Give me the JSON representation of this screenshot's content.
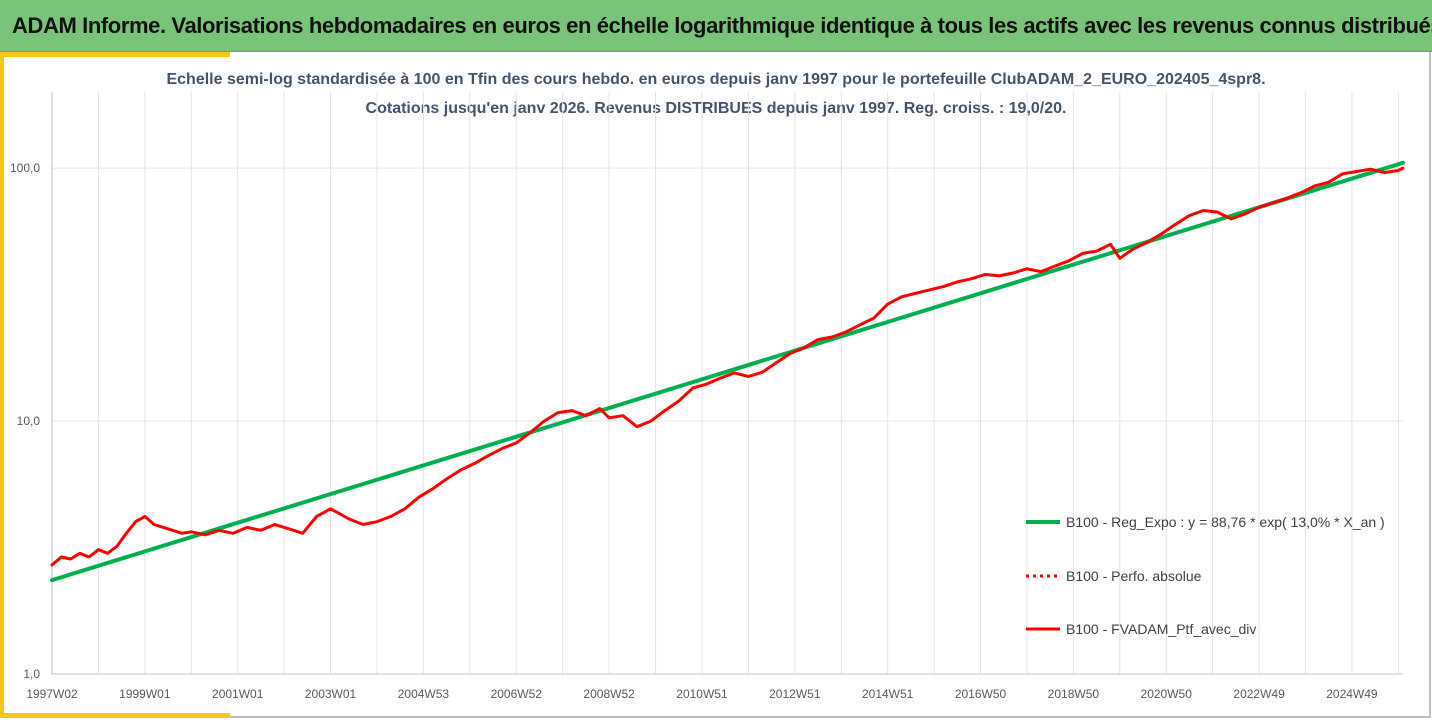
{
  "banner": {
    "title": "ADAM Informe. Valorisations hebdomadaires en euros en échelle logarithmique identique à tous les actifs avec les revenus connus distribués"
  },
  "chart_data": {
    "type": "line",
    "title": "Echelle semi-log standardisée  à 100 en Tfin des cours hebdo.  en euros depuis janv 1997 pour le portefeuille ClubADAM_2_EURO_202405_4spr8.",
    "subtitle": "Cotations  jusqu'en janv 2026. Revenus DISTRIBUES depuis janv 1997. Reg. croiss. : 19,0/20.",
    "y_scale": "log",
    "ylim": [
      1,
      200
    ],
    "y_ticks": [
      1,
      10,
      100
    ],
    "y_tick_labels": [
      "1,0",
      "10,0",
      "100,0"
    ],
    "x_range": [
      1997.0,
      2026.1
    ],
    "x_ticks": [
      1997.0,
      1999.0,
      2001.0,
      2003.0,
      2005.0,
      2007.0,
      2009.0,
      2011.0,
      2013.0,
      2015.0,
      2017.0,
      2019.0,
      2021.0,
      2023.0,
      2025.0
    ],
    "x_tick_labels": [
      "1997W02",
      "1999W01",
      "2001W01",
      "2003W01",
      "2004W53",
      "2006W52",
      "2008W52",
      "2010W51",
      "2012W51",
      "2014W51",
      "2016W50",
      "2018W50",
      "2020W50",
      "2022W49",
      "2024W49"
    ],
    "grid": "vertical",
    "legend_position": "right",
    "series": [
      {
        "name": "B100 - Reg_Expo : y = 88,76 * exp( 13,0% *  X_an )",
        "color": "#00b050",
        "style": "solid",
        "x": [
          1997.0,
          2026.1
        ],
        "values": [
          2.35,
          105.0
        ]
      },
      {
        "name": "B100 - Perfo. absolue",
        "color": "#ff0000",
        "style": "dotted",
        "x": [],
        "values": []
      },
      {
        "name": "B100 - FVADAM_Ptf_avec_div",
        "color": "#ff0000",
        "style": "solid",
        "x": [
          1997.0,
          1997.2,
          1997.4,
          1997.6,
          1997.8,
          1998.0,
          1998.2,
          1998.4,
          1998.6,
          1998.8,
          1999.0,
          1999.2,
          1999.4,
          1999.6,
          1999.8,
          2000.0,
          2000.3,
          2000.6,
          2000.9,
          2001.2,
          2001.5,
          2001.8,
          2002.1,
          2002.4,
          2002.7,
          2003.0,
          2003.2,
          2003.4,
          2003.7,
          2004.0,
          2004.3,
          2004.6,
          2004.9,
          2005.2,
          2005.5,
          2005.8,
          2006.1,
          2006.4,
          2006.7,
          2007.0,
          2007.3,
          2007.6,
          2007.9,
          2008.2,
          2008.5,
          2008.8,
          2009.0,
          2009.3,
          2009.6,
          2009.9,
          2010.2,
          2010.5,
          2010.8,
          2011.1,
          2011.4,
          2011.7,
          2012.0,
          2012.3,
          2012.6,
          2012.9,
          2013.2,
          2013.5,
          2013.8,
          2014.1,
          2014.4,
          2014.7,
          2015.0,
          2015.3,
          2015.6,
          2015.9,
          2016.2,
          2016.5,
          2016.8,
          2017.1,
          2017.4,
          2017.7,
          2018.0,
          2018.3,
          2018.6,
          2018.9,
          2019.2,
          2019.5,
          2019.8,
          2020.0,
          2020.15,
          2020.3,
          2020.6,
          2020.9,
          2021.2,
          2021.5,
          2021.8,
          2022.1,
          2022.4,
          2022.7,
          2023.0,
          2023.3,
          2023.6,
          2023.9,
          2024.2,
          2024.5,
          2024.8,
          2025.1,
          2025.4,
          2025.7,
          2026.0,
          2026.1
        ],
        "values": [
          2.7,
          2.9,
          2.85,
          3.0,
          2.9,
          3.1,
          3.0,
          3.2,
          3.6,
          4.0,
          4.2,
          3.9,
          3.8,
          3.7,
          3.6,
          3.65,
          3.55,
          3.7,
          3.6,
          3.8,
          3.7,
          3.9,
          3.75,
          3.6,
          4.2,
          4.5,
          4.3,
          4.1,
          3.9,
          4.0,
          4.2,
          4.5,
          5.0,
          5.4,
          5.9,
          6.4,
          6.8,
          7.3,
          7.8,
          8.2,
          9.0,
          10.0,
          10.8,
          11.0,
          10.5,
          11.2,
          10.3,
          10.5,
          9.5,
          10.0,
          11.0,
          12.0,
          13.5,
          14.0,
          14.8,
          15.5,
          15.0,
          15.6,
          17.0,
          18.5,
          19.5,
          21.0,
          21.5,
          22.5,
          24.0,
          25.5,
          29.0,
          31.0,
          32.0,
          33.0,
          34.0,
          35.5,
          36.5,
          38.0,
          37.5,
          38.5,
          40.0,
          39.0,
          41.0,
          43.0,
          46.0,
          47.0,
          50.0,
          44.0,
          46.0,
          48.0,
          51.0,
          55.0,
          60.0,
          65.0,
          68.0,
          67.0,
          63.0,
          66.0,
          70.0,
          73.0,
          76.0,
          80.0,
          85.0,
          88.0,
          95.0,
          97.0,
          99.0,
          96.0,
          98.0,
          100.0
        ]
      }
    ]
  }
}
